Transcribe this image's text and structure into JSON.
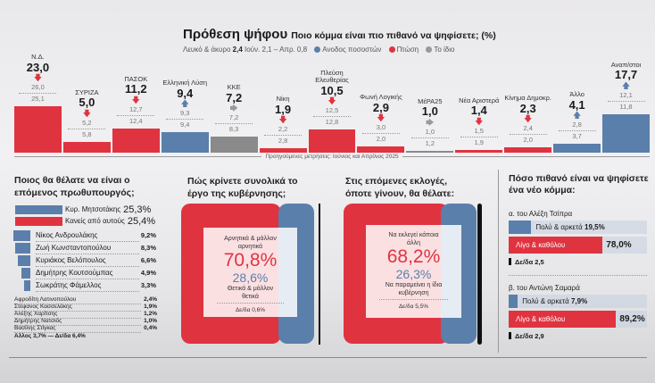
{
  "header": {
    "title": "Πρόθεση ψήφου",
    "question": "Ποιο κόμμα είναι πιο πιθανό να ψηφίσετε; (%)",
    "blank_label": "Λευκό & άκυρο",
    "blank_value": "2,4",
    "blank_prev": "Ιούν. 2,1 – Απρ. 0,8",
    "legend": [
      {
        "label": "Ανοδος ποσοστών",
        "color": "#5b7fab"
      },
      {
        "label": "Πτώση",
        "color": "#e03340"
      },
      {
        "label": "Το ίδιο",
        "color": "#999999"
      }
    ]
  },
  "chart_data": {
    "type": "bar",
    "title": "Πρόθεση ψήφου",
    "ylabel": "%",
    "categories": [
      "Ν.Δ.",
      "ΣΥΡΙΖΑ",
      "ΠΑΣΟΚ",
      "Ελληνική Λύση",
      "ΚΚΕ",
      "Νίκη",
      "Πλεύση Ελευθερίας",
      "Φωνή Λογικής",
      "ΜέΡΑ25",
      "Νέα Αριστερά",
      "Κίνημα Δημοκρ.",
      "Άλλο",
      "Αναπ/στοι"
    ],
    "values": [
      23.0,
      5.0,
      11.2,
      9.4,
      7.2,
      1.9,
      10.5,
      2.9,
      1.0,
      1.4,
      2.3,
      4.1,
      17.7
    ],
    "labels": [
      "23,0",
      "5,0",
      "11,2",
      "9,4",
      "7,2",
      "1,9",
      "10,5",
      "2,9",
      "1,0",
      "1,4",
      "2,3",
      "4,1",
      "17,7"
    ],
    "prev_june": [
      "26,0",
      "5,2",
      "12,7",
      "9,3",
      "7,2",
      "2,2",
      "12,5",
      "3,0",
      "1,0",
      "1,5",
      "2,4",
      "2,8",
      "12,1"
    ],
    "prev_april": [
      "25,1",
      "5,8",
      "12,4",
      "9,4",
      "8,3",
      "2,8",
      "12,8",
      "2,0",
      "1,2",
      "1,9",
      "2,0",
      "3,7",
      "11,8"
    ],
    "trend": [
      "down",
      "down",
      "down",
      "up",
      "same",
      "down",
      "down",
      "down",
      "same",
      "down",
      "down",
      "up",
      "up"
    ],
    "bar_colors": [
      "#e03340",
      "#e03340",
      "#e03340",
      "#5b7fab",
      "#8a8a8a",
      "#e03340",
      "#e03340",
      "#e03340",
      "#8a8a8a",
      "#e03340",
      "#e03340",
      "#5b7fab",
      "#5b7fab"
    ],
    "footnote": "Προηγούμενες μετρήσεις: Ιούνιος και Απρίλιος 2025"
  },
  "pm": {
    "title": "Ποιος θα θέλατε να είναι ο επόμενος πρωθυπουργός;",
    "main": [
      {
        "name": "Κυρ. Μητσοτάκης",
        "value": "25,3%",
        "v": 25.3,
        "color": "#5b7fab"
      },
      {
        "name": "Κανείς από αυτούς",
        "value": "25,4%",
        "v": 25.4,
        "color": "#e03340"
      },
      {
        "name": "Νίκος Ανδρουλάκης",
        "value": "9,2%",
        "v": 9.2,
        "color": "#5b7fab"
      },
      {
        "name": "Ζωή Κωνσταντοπούλου",
        "value": "8,3%",
        "v": 8.3,
        "color": "#5b7fab"
      },
      {
        "name": "Κυριάκος Βελόπουλος",
        "value": "6,6%",
        "v": 6.6,
        "color": "#5b7fab"
      },
      {
        "name": "Δημήτρης Κουτσούμπας",
        "value": "4,9%",
        "v": 4.9,
        "color": "#5b7fab"
      },
      {
        "name": "Σωκράτης Φάμελλος",
        "value": "3,3%",
        "v": 3.3,
        "color": "#5b7fab"
      }
    ],
    "small": [
      {
        "name": "Αφροδίτη Λατινοπούλου",
        "value": "2,4%"
      },
      {
        "name": "Στέφανος Κασσελάκης",
        "value": "1,9%"
      },
      {
        "name": "Αλέξης Χαρίτσης",
        "value": "1,2%"
      },
      {
        "name": "Δημήτρης Νατσιός",
        "value": "1,0%"
      },
      {
        "name": "Βασίλης Στίγκας",
        "value": "0,4%"
      }
    ],
    "other": "Αλλος 3,7% — Δε/δα 6,4%"
  },
  "gov": {
    "title": "Πώς κρίνετε συνολικά το έργο της κυβέρνησης;",
    "neg_label": "Αρνητικά & μάλλον αρνητικά",
    "neg": "70,8%",
    "pos": "28,6%",
    "pos_label": "Θετικά & μάλλον θετικά",
    "dk": "Δε/δα 0,6%"
  },
  "elect": {
    "title": "Στις επόμενες εκλογές, όποτε γίνουν, θα θέλατε:",
    "a_label": "Να εκλεγεί κάποια άλλη",
    "a": "68,2%",
    "b": "26,3%",
    "b_label": "Να παραμείνει η ίδια κυβέρνηση",
    "dk": "Δε/δα 5,5%"
  },
  "newparty": {
    "title": "Πόσο πιθανό είναι να ψηφίσετε ένα νέο κόμμα:",
    "a": {
      "label": "α. του Αλέξη Τσίπρα",
      "hi_label": "Πολύ & αρκετά",
      "hi": "19,5%",
      "hi_v": 19.5,
      "lo_label": "Λίγο & καθόλου",
      "lo": "78,0%",
      "lo_v": 78.0,
      "dk": "Δε/δα 2,5"
    },
    "b": {
      "label": "β. του Αντώνη Σαμαρά",
      "hi_label": "Πολύ & αρκετά",
      "hi": "7,9%",
      "hi_v": 7.9,
      "lo_label": "Λίγο & καθόλου",
      "lo": "89,2%",
      "lo_v": 89.2,
      "dk": "Δε/δα 2,9"
    }
  }
}
